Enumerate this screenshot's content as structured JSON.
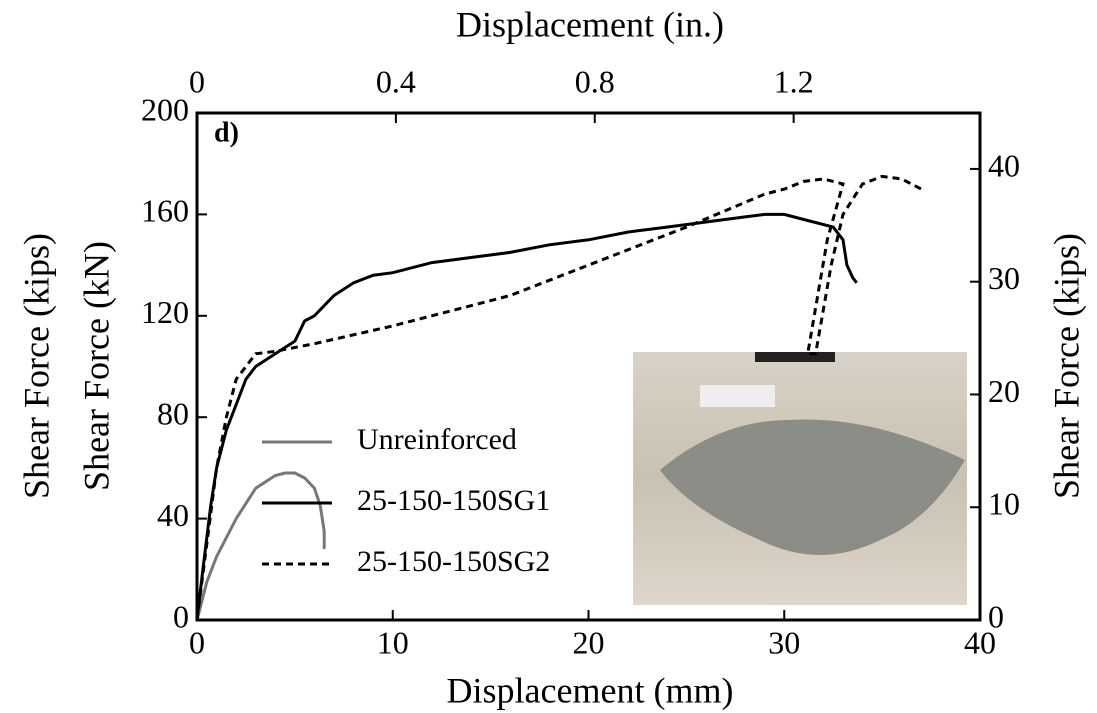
{
  "chart_data": {
    "type": "line",
    "x_label": "Displacement (mm)",
    "x2_label": "Displacement (in.)",
    "y_label": "Shear Force (kN)",
    "y_label_outer": "Shear Force (kips)",
    "y2_label": "Shear Force (kips)",
    "annotation": "d)",
    "xlim": [
      0,
      40
    ],
    "xticks": [
      0,
      10,
      20,
      30,
      40
    ],
    "x2lim": [
      0,
      1.5748
    ],
    "x2ticks": [
      0,
      0.4,
      0.8,
      1.2
    ],
    "ylim": [
      0,
      200
    ],
    "yticks": [
      0,
      40,
      80,
      120,
      160,
      200
    ],
    "y2lim": [
      0,
      44.96
    ],
    "y2ticks": [
      0,
      10,
      20,
      30,
      40
    ],
    "legend": "lower left",
    "series": [
      {
        "name": "Unreinforced",
        "color": "#777777",
        "style": "solid",
        "x": [
          0,
          0.5,
          1,
          2,
          3,
          4,
          4.5,
          5,
          5.5,
          6,
          6.3,
          6.5,
          6.5
        ],
        "values": [
          0,
          15,
          25,
          40,
          52,
          57,
          58,
          58,
          56,
          52,
          45,
          35,
          28
        ]
      },
      {
        "name": "25-150-150SG1",
        "color": "#000000",
        "style": "solid",
        "x": [
          0,
          0.3,
          0.7,
          1,
          1.5,
          2,
          2.5,
          3,
          4,
          5,
          5.5,
          6,
          7,
          8,
          9,
          10,
          12,
          14,
          16,
          18,
          20,
          22,
          24,
          26,
          28,
          29,
          30,
          31,
          32.5,
          33,
          33.2,
          33.5,
          33.7
        ],
        "values": [
          0,
          20,
          45,
          60,
          75,
          85,
          95,
          100,
          105,
          110,
          118,
          120,
          128,
          133,
          136,
          137,
          141,
          143,
          145,
          148,
          150,
          153,
          155,
          157,
          159,
          160,
          160,
          158,
          155,
          150,
          140,
          135,
          133
        ]
      },
      {
        "name": "25-150-150SG2",
        "color": "#000000",
        "style": "dashed",
        "x": [
          0,
          0.5,
          1,
          1.5,
          2,
          3,
          4,
          6,
          10,
          16,
          20,
          25,
          29,
          30,
          31,
          32,
          33,
          32.2,
          31.2,
          31.6,
          32.4,
          33,
          34,
          35,
          36,
          37
        ],
        "values": [
          0,
          30,
          60,
          80,
          95,
          105,
          106,
          109,
          116,
          128,
          140,
          155,
          168,
          170,
          173,
          174,
          172,
          150,
          105,
          105,
          140,
          160,
          172,
          175,
          174,
          170
        ]
      }
    ]
  }
}
